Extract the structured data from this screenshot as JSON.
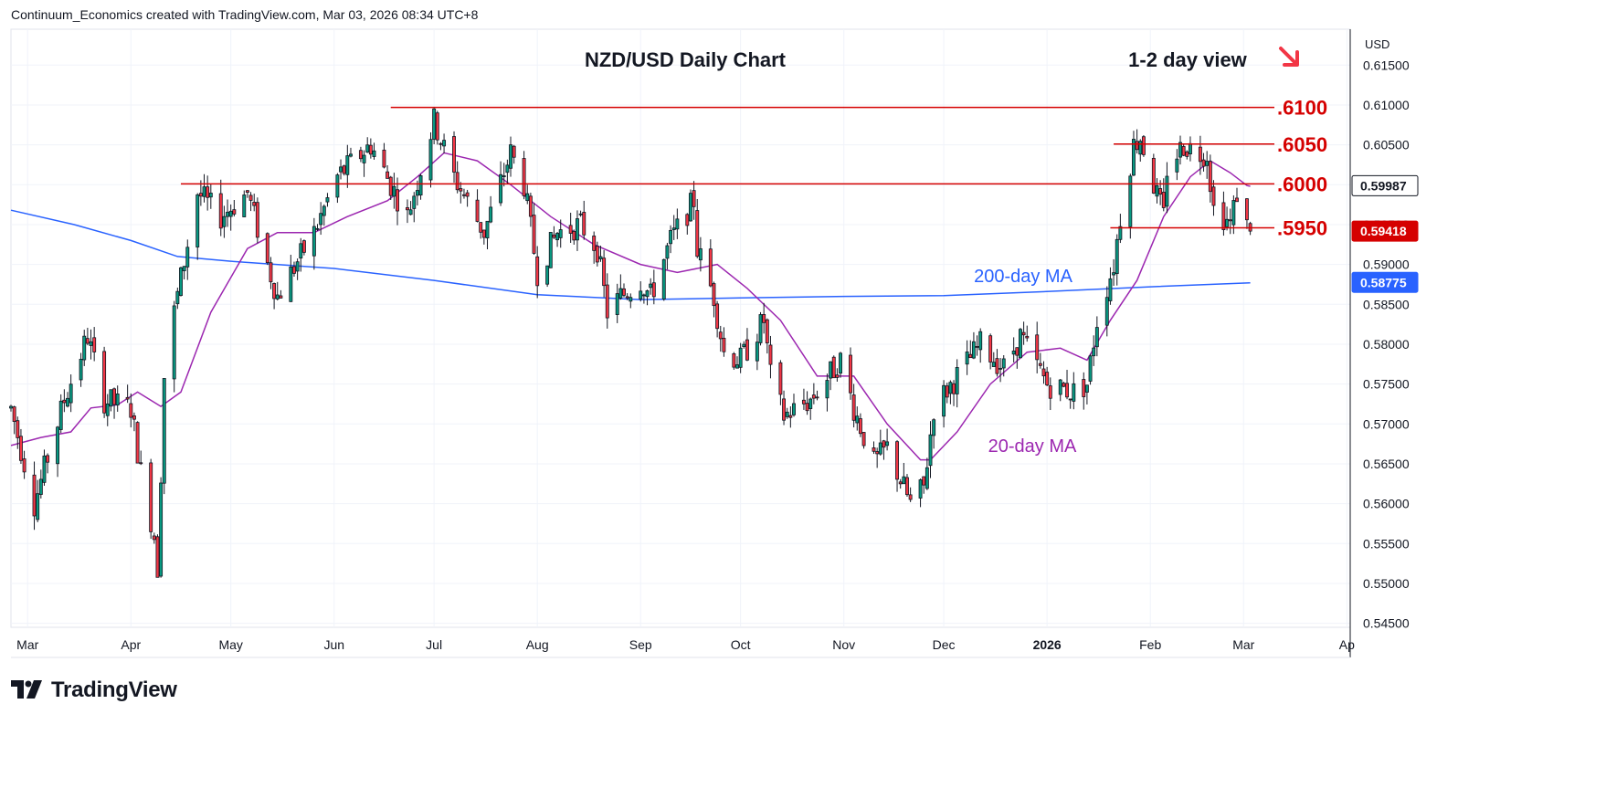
{
  "attribution": "Continuum_Economics created with TradingView.com, Mar 03, 2026 08:34 UTC+8",
  "brand": {
    "name": "TradingView",
    "logo_icon": "tradingview-logo-icon"
  },
  "colors": {
    "up_candle": "#089981",
    "down_candle": "#f23645",
    "candle_wick": "#131722",
    "ma20": "#9c27b0",
    "ma200": "#2962ff",
    "level_line": "#d50000",
    "level_text": "#d50000",
    "price_tag_bg": "#d50000",
    "ma200_tag_bg": "#2962ff",
    "white_tag_bg": "#ffffff",
    "grid": "#f0f3fa",
    "arrow": "#f23645"
  },
  "chart_data": {
    "type": "candlestick",
    "title": "NZD/USD Daily Chart",
    "view_label": "1-2 day view",
    "view_arrow_icon": "down-right-arrow-icon",
    "currency_label": "USD",
    "x_ticks": [
      "Mar",
      "Apr",
      "May",
      "Jun",
      "Jul",
      "Aug",
      "Sep",
      "Oct",
      "Nov",
      "Dec",
      "2026",
      "Feb",
      "Mar",
      "Ap"
    ],
    "y_ticks": [
      "0.61500",
      "0.61000",
      "0.60500",
      "0.60000",
      "0.59500",
      "0.59000",
      "0.58500",
      "0.58000",
      "0.57500",
      "0.57000",
      "0.56500",
      "0.56000",
      "0.55500",
      "0.55000",
      "0.54500"
    ],
    "ylim": [
      0.5445,
      0.6195
    ],
    "grid": true,
    "resistance_levels": [
      {
        "label": ".6100",
        "value": 0.6097
      },
      {
        "label": ".6050",
        "value": 0.6051
      },
      {
        "label": ".6000",
        "value": 0.6001
      },
      {
        "label": ".5950",
        "value": 0.5946
      }
    ],
    "ma_labels": {
      "ma200": "200-day MA",
      "ma20": "20-day MA"
    },
    "price_tags": [
      {
        "label": "0.59987",
        "value": 0.59987,
        "kind": "white"
      },
      {
        "label": "0.59418",
        "value": 0.59418,
        "kind": "last"
      },
      {
        "label": "0.58775",
        "value": 0.58775,
        "kind": "ma200"
      }
    ],
    "trend_anchors": [
      [
        "2025-02-24",
        0.572
      ],
      [
        "2025-03-03",
        0.56
      ],
      [
        "2025-03-12",
        0.573
      ],
      [
        "2025-03-19",
        0.581
      ],
      [
        "2025-03-24",
        0.573
      ],
      [
        "2025-04-01",
        0.572
      ],
      [
        "2025-04-04",
        0.564
      ],
      [
        "2025-04-08",
        0.556
      ],
      [
        "2025-04-09",
        0.552
      ],
      [
        "2025-04-11",
        0.576
      ],
      [
        "2025-04-14",
        0.584
      ],
      [
        "2025-04-21",
        0.599
      ],
      [
        "2025-04-28",
        0.596
      ],
      [
        "2025-05-06",
        0.599
      ],
      [
        "2025-05-12",
        0.59
      ],
      [
        "2025-05-15",
        0.586
      ],
      [
        "2025-05-26",
        0.594
      ],
      [
        "2025-06-02",
        0.601
      ],
      [
        "2025-06-12",
        0.605
      ],
      [
        "2025-06-18",
        0.6
      ],
      [
        "2025-06-23",
        0.596
      ],
      [
        "2025-07-01",
        0.608
      ],
      [
        "2025-07-07",
        0.601
      ],
      [
        "2025-07-16",
        0.594
      ],
      [
        "2025-07-24",
        0.604
      ],
      [
        "2025-07-28",
        0.6
      ],
      [
        "2025-08-01",
        0.589
      ],
      [
        "2025-08-07",
        0.594
      ],
      [
        "2025-08-14",
        0.595
      ],
      [
        "2025-08-19",
        0.592
      ],
      [
        "2025-08-22",
        0.584
      ],
      [
        "2025-08-26",
        0.586
      ],
      [
        "2025-09-01",
        0.588
      ],
      [
        "2025-09-04",
        0.586
      ],
      [
        "2025-09-10",
        0.593
      ],
      [
        "2025-09-17",
        0.598
      ],
      [
        "2025-09-18",
        0.592
      ],
      [
        "2025-09-23",
        0.586
      ],
      [
        "2025-09-26",
        0.579
      ],
      [
        "2025-10-01",
        0.578
      ],
      [
        "2025-10-08",
        0.583
      ],
      [
        "2025-10-10",
        0.576
      ],
      [
        "2025-10-14",
        0.571
      ],
      [
        "2025-10-22",
        0.573
      ],
      [
        "2025-10-31",
        0.578
      ],
      [
        "2025-11-04",
        0.572
      ],
      [
        "2025-11-10",
        0.565
      ],
      [
        "2025-11-14",
        0.567
      ],
      [
        "2025-11-21",
        0.56
      ],
      [
        "2025-11-25",
        0.562
      ],
      [
        "2025-11-28",
        0.572
      ],
      [
        "2025-12-05",
        0.576
      ],
      [
        "2025-12-12",
        0.58
      ],
      [
        "2025-12-19",
        0.577
      ],
      [
        "2025-12-24",
        0.581
      ],
      [
        "2026-01-01",
        0.575
      ],
      [
        "2026-01-09",
        0.574
      ],
      [
        "2026-01-13",
        0.575
      ],
      [
        "2026-01-16",
        0.583
      ],
      [
        "2026-01-21",
        0.59
      ],
      [
        "2026-01-23",
        0.596
      ],
      [
        "2026-01-27",
        0.605
      ],
      [
        "2026-01-29",
        0.606
      ],
      [
        "2026-02-02",
        0.6
      ],
      [
        "2026-02-05",
        0.596
      ],
      [
        "2026-02-06",
        0.602
      ],
      [
        "2026-02-11",
        0.605
      ],
      [
        "2026-02-16",
        0.604
      ],
      [
        "2026-02-18",
        0.604
      ],
      [
        "2026-02-20",
        0.597
      ],
      [
        "2026-02-23",
        0.596
      ],
      [
        "2026-02-25",
        0.595
      ],
      [
        "2026-02-27",
        0.599
      ],
      [
        "2026-03-02",
        0.5948
      ],
      [
        "2026-03-03",
        0.5942
      ]
    ],
    "ma20_points": [
      [
        "2025-02-24",
        0.5673
      ],
      [
        "2025-03-05",
        0.5683
      ],
      [
        "2025-03-14",
        0.569
      ],
      [
        "2025-03-20",
        0.572
      ],
      [
        "2025-03-28",
        0.5724
      ],
      [
        "2025-04-03",
        0.574
      ],
      [
        "2025-04-10",
        0.5722
      ],
      [
        "2025-04-16",
        0.574
      ],
      [
        "2025-04-25",
        0.584
      ],
      [
        "2025-05-06",
        0.592
      ],
      [
        "2025-05-15",
        0.594
      ],
      [
        "2025-05-26",
        0.594
      ],
      [
        "2025-06-05",
        0.596
      ],
      [
        "2025-06-17",
        0.598
      ],
      [
        "2025-06-26",
        0.601
      ],
      [
        "2025-07-04",
        0.604
      ],
      [
        "2025-07-14",
        0.603
      ],
      [
        "2025-07-24",
        0.6
      ],
      [
        "2025-08-05",
        0.596
      ],
      [
        "2025-08-18",
        0.5925
      ],
      [
        "2025-09-01",
        0.59
      ],
      [
        "2025-09-12",
        0.589
      ],
      [
        "2025-09-24",
        0.59
      ],
      [
        "2025-10-03",
        0.587
      ],
      [
        "2025-10-13",
        0.583
      ],
      [
        "2025-10-24",
        0.576
      ],
      [
        "2025-11-04",
        0.576
      ],
      [
        "2025-11-14",
        0.57
      ],
      [
        "2025-11-24",
        0.5655
      ],
      [
        "2025-11-27",
        0.5655
      ],
      [
        "2025-12-05",
        0.569
      ],
      [
        "2025-12-15",
        0.575
      ],
      [
        "2025-12-26",
        0.579
      ],
      [
        "2026-01-05",
        0.5795
      ],
      [
        "2026-01-13",
        0.578
      ],
      [
        "2026-01-20",
        0.583
      ],
      [
        "2026-01-28",
        0.588
      ],
      [
        "2026-02-05",
        0.596
      ],
      [
        "2026-02-13",
        0.601
      ],
      [
        "2026-02-19",
        0.603
      ],
      [
        "2026-02-25",
        0.6015
      ],
      [
        "2026-03-02",
        0.5999
      ],
      [
        "2026-03-03",
        0.5998
      ]
    ],
    "ma200_points": [
      [
        "2025-02-24",
        0.5968
      ],
      [
        "2025-03-15",
        0.595
      ],
      [
        "2025-04-01",
        0.593
      ],
      [
        "2025-04-15",
        0.591
      ],
      [
        "2025-05-01",
        0.5904
      ],
      [
        "2025-06-01",
        0.5895
      ],
      [
        "2025-07-01",
        0.588
      ],
      [
        "2025-08-01",
        0.5862
      ],
      [
        "2025-09-01",
        0.5856
      ],
      [
        "2025-10-01",
        0.5858
      ],
      [
        "2025-11-01",
        0.586
      ],
      [
        "2025-12-01",
        0.5861
      ],
      [
        "2026-01-01",
        0.5866
      ],
      [
        "2026-02-01",
        0.5872
      ],
      [
        "2026-03-03",
        0.5877
      ]
    ]
  }
}
